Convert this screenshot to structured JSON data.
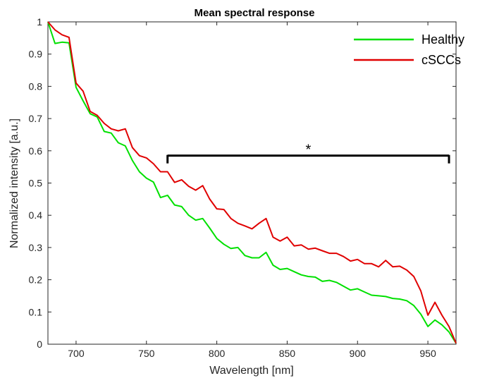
{
  "chart_data": {
    "type": "line",
    "title": "Mean spectral response",
    "xlabel": "Wavelength [nm]",
    "ylabel": "Normalized intensity [a.u.]",
    "xlim": [
      680,
      970
    ],
    "ylim": [
      0,
      1
    ],
    "xticks": [
      700,
      750,
      800,
      850,
      900,
      950
    ],
    "yticks": [
      0,
      0.1,
      0.2,
      0.3,
      0.4,
      0.5,
      0.6,
      0.7,
      0.8,
      0.9,
      1
    ],
    "ytick_labels": [
      "0",
      "0.1",
      "0.2",
      "0.3",
      "0.4",
      "0.5",
      "0.6",
      "0.7",
      "0.8",
      "0.9",
      "1"
    ],
    "grid": false,
    "legend_position": "top-right",
    "annotation": {
      "text": "*",
      "x_start": 765,
      "x_end": 965,
      "y": 0.585
    },
    "series": [
      {
        "name": "Healthy",
        "color": "#00e000",
        "x": [
          680,
          685,
          690,
          695,
          700,
          705,
          710,
          715,
          720,
          725,
          730,
          735,
          740,
          745,
          750,
          755,
          760,
          765,
          770,
          775,
          780,
          785,
          790,
          795,
          800,
          805,
          810,
          815,
          820,
          825,
          830,
          835,
          840,
          845,
          850,
          855,
          860,
          865,
          870,
          875,
          880,
          885,
          890,
          895,
          900,
          905,
          910,
          915,
          920,
          925,
          930,
          935,
          940,
          945,
          950,
          955,
          960,
          965,
          970
        ],
        "y": [
          1.0,
          0.933,
          0.937,
          0.935,
          0.797,
          0.755,
          0.715,
          0.705,
          0.66,
          0.655,
          0.625,
          0.615,
          0.57,
          0.535,
          0.515,
          0.503,
          0.455,
          0.462,
          0.432,
          0.427,
          0.4,
          0.385,
          0.39,
          0.36,
          0.328,
          0.31,
          0.297,
          0.3,
          0.275,
          0.268,
          0.268,
          0.285,
          0.245,
          0.232,
          0.235,
          0.225,
          0.215,
          0.21,
          0.208,
          0.195,
          0.198,
          0.192,
          0.18,
          0.168,
          0.172,
          0.162,
          0.152,
          0.15,
          0.148,
          0.142,
          0.14,
          0.135,
          0.12,
          0.093,
          0.055,
          0.075,
          0.06,
          0.038,
          0.003
        ]
      },
      {
        "name": "cSCCs",
        "color": "#e00000",
        "x": [
          680,
          685,
          690,
          695,
          700,
          705,
          710,
          715,
          720,
          725,
          730,
          735,
          740,
          745,
          750,
          755,
          760,
          765,
          770,
          775,
          780,
          785,
          790,
          795,
          800,
          805,
          810,
          815,
          820,
          825,
          830,
          835,
          840,
          845,
          850,
          855,
          860,
          865,
          870,
          875,
          880,
          885,
          890,
          895,
          900,
          905,
          910,
          915,
          920,
          925,
          930,
          935,
          940,
          945,
          950,
          955,
          960,
          965,
          970
        ],
        "y": [
          1.0,
          0.975,
          0.96,
          0.952,
          0.81,
          0.785,
          0.722,
          0.71,
          0.685,
          0.668,
          0.662,
          0.668,
          0.61,
          0.585,
          0.578,
          0.56,
          0.535,
          0.535,
          0.502,
          0.51,
          0.49,
          0.478,
          0.492,
          0.45,
          0.42,
          0.418,
          0.39,
          0.375,
          0.367,
          0.358,
          0.375,
          0.39,
          0.332,
          0.32,
          0.332,
          0.305,
          0.308,
          0.295,
          0.298,
          0.29,
          0.282,
          0.282,
          0.272,
          0.258,
          0.263,
          0.25,
          0.25,
          0.24,
          0.26,
          0.24,
          0.242,
          0.23,
          0.21,
          0.165,
          0.09,
          0.13,
          0.09,
          0.055,
          0.003
        ]
      }
    ]
  }
}
